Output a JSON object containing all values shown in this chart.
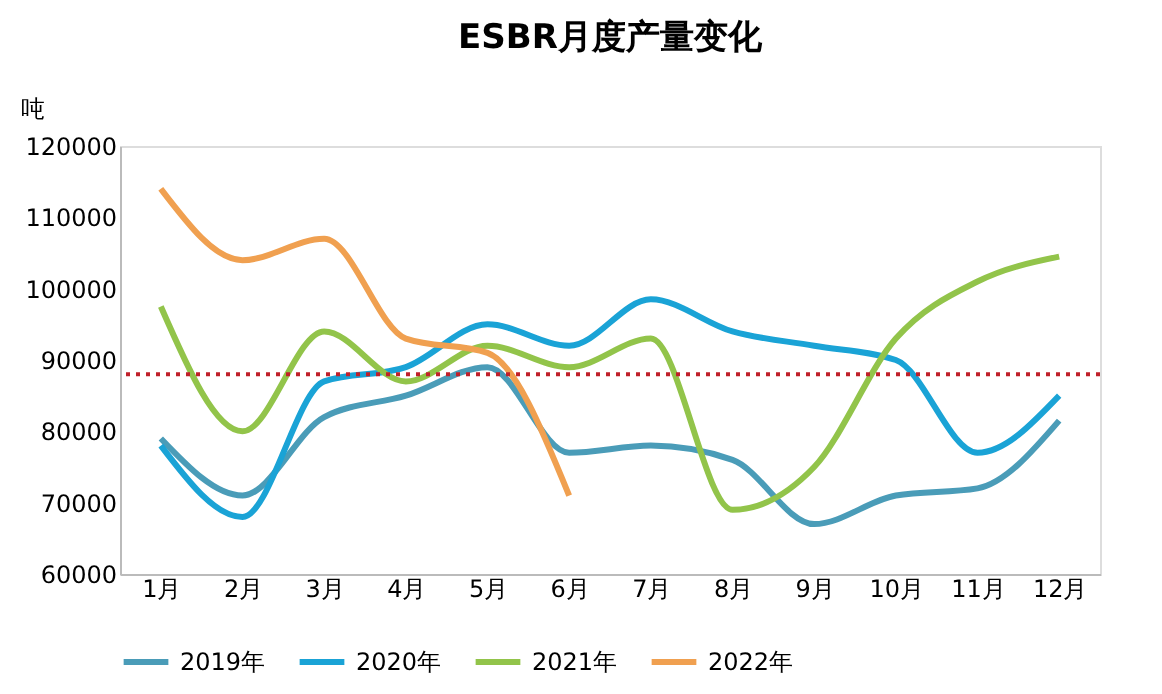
{
  "chart_data": {
    "type": "line",
    "title": "ESBR月度产量变化",
    "ylabel": "吨",
    "categories": [
      "1月",
      "2月",
      "3月",
      "4月",
      "5月",
      "6月",
      "7月",
      "8月",
      "9月",
      "10月",
      "11月",
      "12月"
    ],
    "series": [
      {
        "name": "2019年",
        "color": "#4a9cb8",
        "values": [
          79000,
          71000,
          82000,
          85000,
          89000,
          77000,
          78000,
          76000,
          67000,
          71000,
          72000,
          81500
        ]
      },
      {
        "name": "2020年",
        "color": "#1aa3d6",
        "values": [
          78000,
          68000,
          87000,
          89000,
          95000,
          92000,
          98500,
          94000,
          92000,
          90000,
          77000,
          85000
        ]
      },
      {
        "name": "2021年",
        "color": "#92c44a",
        "values": [
          97500,
          80000,
          94000,
          87000,
          92000,
          89000,
          93000,
          69000,
          75000,
          93000,
          101000,
          104500
        ]
      },
      {
        "name": "2022年",
        "color": "#f0a050",
        "values": [
          114000,
          104000,
          107000,
          93000,
          91000,
          71000,
          null,
          null,
          null,
          null,
          null,
          null
        ]
      }
    ],
    "ylim": [
      60000,
      120000
    ],
    "yticks": [
      60000,
      70000,
      80000,
      90000,
      100000,
      110000,
      120000
    ],
    "ref_lines": [
      {
        "axis": "y",
        "value": 88000,
        "color": "#c0202a",
        "line_style": "dotted"
      }
    ],
    "grid": false,
    "legend": "bottom",
    "marker": "none",
    "line_style": "solid"
  }
}
